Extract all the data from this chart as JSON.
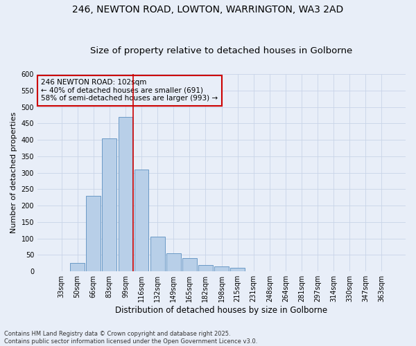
{
  "title_line1": "246, NEWTON ROAD, LOWTON, WARRINGTON, WA3 2AD",
  "title_line2": "Size of property relative to detached houses in Golborne",
  "xlabel": "Distribution of detached houses by size in Golborne",
  "ylabel": "Number of detached properties",
  "bar_labels": [
    "33sqm",
    "50sqm",
    "66sqm",
    "83sqm",
    "99sqm",
    "116sqm",
    "132sqm",
    "149sqm",
    "165sqm",
    "182sqm",
    "198sqm",
    "215sqm",
    "231sqm",
    "248sqm",
    "264sqm",
    "281sqm",
    "297sqm",
    "314sqm",
    "330sqm",
    "347sqm",
    "363sqm"
  ],
  "bar_values": [
    0,
    25,
    230,
    405,
    470,
    310,
    105,
    55,
    40,
    20,
    15,
    10,
    0,
    0,
    0,
    0,
    0,
    0,
    0,
    0,
    0
  ],
  "bar_color": "#b8cfe8",
  "bar_edgecolor": "#5a8fc0",
  "grid_color": "#c8d4e8",
  "background_color": "#e8eef8",
  "vline_x_index": 4.48,
  "vline_color": "#cc0000",
  "annotation_text": "246 NEWTON ROAD: 102sqm\n← 40% of detached houses are smaller (691)\n58% of semi-detached houses are larger (993) →",
  "ylim": [
    0,
    600
  ],
  "yticks": [
    0,
    50,
    100,
    150,
    200,
    250,
    300,
    350,
    400,
    450,
    500,
    550,
    600
  ],
  "footnote": "Contains HM Land Registry data © Crown copyright and database right 2025.\nContains public sector information licensed under the Open Government Licence v3.0.",
  "title_fontsize": 10,
  "subtitle_fontsize": 9.5,
  "ylabel_fontsize": 8,
  "xlabel_fontsize": 8.5,
  "tick_fontsize": 7,
  "annotation_fontsize": 7.5,
  "footnote_fontsize": 6
}
